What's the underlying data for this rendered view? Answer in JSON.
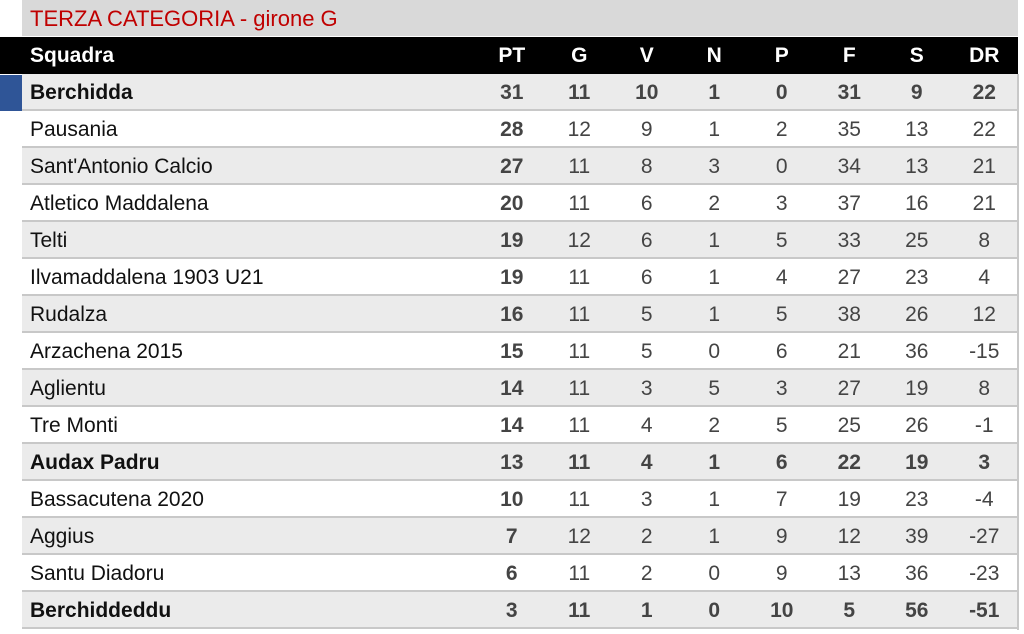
{
  "title": "TERZA CATEGORIA - girone G",
  "colors": {
    "title": "#c00000",
    "header_bg": "#000000",
    "highlight_marker": "#2f5597",
    "row_alt": "#ebebeb"
  },
  "columns": [
    "Squadra",
    "PT",
    "G",
    "V",
    "N",
    "P",
    "F",
    "S",
    "DR"
  ],
  "rows": [
    {
      "team": "Berchidda",
      "bold": true,
      "stats": [
        "31",
        "11",
        "10",
        "1",
        "0",
        "31",
        "9",
        "22"
      ]
    },
    {
      "team": "Pausania",
      "bold": false,
      "stats": [
        "28",
        "12",
        "9",
        "1",
        "2",
        "35",
        "13",
        "22"
      ]
    },
    {
      "team": "Sant'Antonio Calcio",
      "bold": false,
      "stats": [
        "27",
        "11",
        "8",
        "3",
        "0",
        "34",
        "13",
        "21"
      ]
    },
    {
      "team": "Atletico Maddalena",
      "bold": false,
      "stats": [
        "20",
        "11",
        "6",
        "2",
        "3",
        "37",
        "16",
        "21"
      ]
    },
    {
      "team": "Telti",
      "bold": false,
      "stats": [
        "19",
        "12",
        "6",
        "1",
        "5",
        "33",
        "25",
        "8"
      ]
    },
    {
      "team": "Ilvamaddalena 1903 U21",
      "bold": false,
      "stats": [
        "19",
        "11",
        "6",
        "1",
        "4",
        "27",
        "23",
        "4"
      ]
    },
    {
      "team": "Rudalza",
      "bold": false,
      "stats": [
        "16",
        "11",
        "5",
        "1",
        "5",
        "38",
        "26",
        "12"
      ]
    },
    {
      "team": "Arzachena 2015",
      "bold": false,
      "stats": [
        "15",
        "11",
        "5",
        "0",
        "6",
        "21",
        "36",
        "-15"
      ]
    },
    {
      "team": "Aglientu",
      "bold": false,
      "stats": [
        "14",
        "11",
        "3",
        "5",
        "3",
        "27",
        "19",
        "8"
      ]
    },
    {
      "team": "Tre Monti",
      "bold": false,
      "stats": [
        "14",
        "11",
        "4",
        "2",
        "5",
        "25",
        "26",
        "-1"
      ]
    },
    {
      "team": "Audax Padru",
      "bold": true,
      "stats": [
        "13",
        "11",
        "4",
        "1",
        "6",
        "22",
        "19",
        "3"
      ]
    },
    {
      "team": "Bassacutena 2020",
      "bold": false,
      "stats": [
        "10",
        "11",
        "3",
        "1",
        "7",
        "19",
        "23",
        "-4"
      ]
    },
    {
      "team": "Aggius",
      "bold": false,
      "stats": [
        "7",
        "12",
        "2",
        "1",
        "9",
        "12",
        "39",
        "-27"
      ]
    },
    {
      "team": "Santu Diadoru",
      "bold": false,
      "stats": [
        "6",
        "11",
        "2",
        "0",
        "9",
        "13",
        "36",
        "-23"
      ]
    },
    {
      "team": "Berchiddeddu",
      "bold": true,
      "stats": [
        "3",
        "11",
        "1",
        "0",
        "10",
        "5",
        "56",
        "-51"
      ]
    }
  ]
}
